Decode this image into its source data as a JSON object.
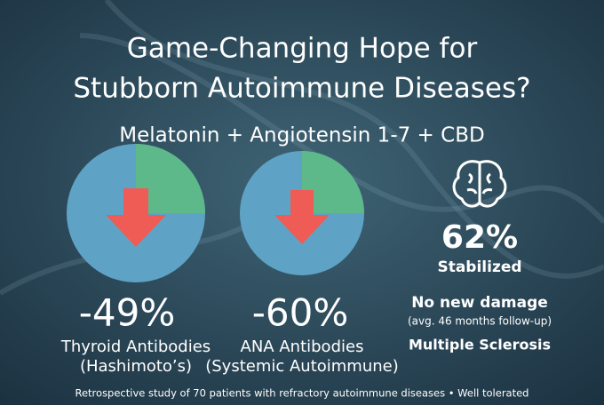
{
  "header": {
    "title_lines": [
      "Game-Changing Hope for",
      "Stubborn Autoimmune Diseases?"
    ],
    "subtitle": "Melatonin + Angiotensin 1-7 + CBD"
  },
  "stats": [
    {
      "value": "-49%",
      "label_lines": [
        "Thyroid Antibodies",
        "(Hashimoto’s)"
      ]
    },
    {
      "value": "-60%",
      "label_lines": [
        "ANA Antibodies",
        "(Systemic Autoimmune)"
      ]
    },
    {
      "value": "62%",
      "label_lines": [
        "Stabilized",
        "No new damage",
        "(avg. 46 months follow-up)",
        "Multiple Sclerosis"
      ]
    }
  ],
  "footer": "Retrospective study of 70 patients with refractory autoimmune diseases • Well tolerated"
}
